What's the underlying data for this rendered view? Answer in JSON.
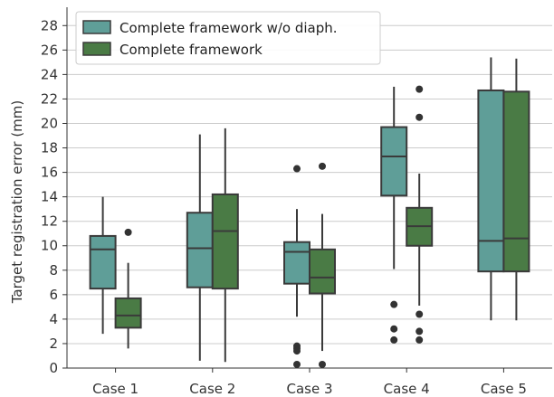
{
  "chart_data": {
    "type": "box",
    "title": "",
    "xlabel": "",
    "ylabel": "Target registration error (mm)",
    "ylim": [
      0,
      29.5
    ],
    "yticks": [
      0,
      2,
      4,
      6,
      8,
      10,
      12,
      14,
      16,
      18,
      20,
      22,
      24,
      26,
      28
    ],
    "grid": "horizontal",
    "legend": "top-left",
    "categories": [
      "Case 1",
      "Case 2",
      "Case 3",
      "Case 4",
      "Case 5"
    ],
    "series": [
      {
        "name": "Complete framework w/o diaph.",
        "color": "#5f9e98",
        "boxes": [
          {
            "whisker_low": 2.8,
            "q1": 6.5,
            "median": 9.7,
            "q3": 10.8,
            "whisker_high": 14.0,
            "outliers": []
          },
          {
            "whisker_low": 0.6,
            "q1": 6.6,
            "median": 9.8,
            "q3": 12.7,
            "whisker_high": 19.1,
            "outliers": []
          },
          {
            "whisker_low": 4.2,
            "q1": 6.9,
            "median": 9.5,
            "q3": 10.3,
            "whisker_high": 13.0,
            "outliers": [
              16.3,
              1.8,
              1.6,
              1.4,
              0.3
            ]
          },
          {
            "whisker_low": 8.1,
            "q1": 14.1,
            "median": 17.3,
            "q3": 19.7,
            "whisker_high": 23.0,
            "outliers": [
              5.2,
              3.2,
              2.3
            ]
          },
          {
            "whisker_low": 3.9,
            "q1": 7.9,
            "median": 10.4,
            "q3": 22.7,
            "whisker_high": 25.4,
            "outliers": []
          }
        ]
      },
      {
        "name": "Complete framework",
        "color": "#4a7b45",
        "boxes": [
          {
            "whisker_low": 1.6,
            "q1": 3.3,
            "median": 4.3,
            "q3": 5.7,
            "whisker_high": 8.6,
            "outliers": [
              11.1
            ]
          },
          {
            "whisker_low": 0.5,
            "q1": 6.5,
            "median": 11.2,
            "q3": 14.2,
            "whisker_high": 19.6,
            "outliers": []
          },
          {
            "whisker_low": 1.4,
            "q1": 6.1,
            "median": 7.4,
            "q3": 9.7,
            "whisker_high": 12.6,
            "outliers": [
              16.5,
              0.3
            ]
          },
          {
            "whisker_low": 5.1,
            "q1": 10.0,
            "median": 11.6,
            "q3": 13.1,
            "whisker_high": 15.9,
            "outliers": [
              22.8,
              20.5,
              4.4,
              3.0,
              2.3
            ]
          },
          {
            "whisker_low": 3.9,
            "q1": 7.9,
            "median": 10.6,
            "q3": 22.6,
            "whisker_high": 25.3,
            "outliers": []
          }
        ]
      }
    ]
  }
}
